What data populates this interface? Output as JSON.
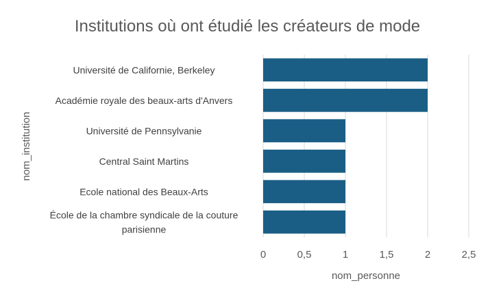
{
  "chart_data": {
    "type": "bar",
    "orientation": "horizontal",
    "title": "Institutions où ont étudié les créateurs de mode",
    "xlabel": "nom_personne",
    "ylabel": "nom_institution",
    "categories": [
      "Université de Californie, Berkeley",
      "Académie royale des beaux-arts d'Anvers",
      "Université de Pennsylvanie",
      "Central Saint Martins",
      "Ecole national des Beaux-Arts",
      "École de la chambre syndicale de la couture parisienne"
    ],
    "values": [
      2,
      2,
      1,
      1,
      1,
      1
    ],
    "xlim": [
      0,
      2.5
    ],
    "xticks": [
      "0",
      "0,5",
      "1",
      "1,5",
      "2",
      "2,5"
    ],
    "grid": true,
    "legend": "none",
    "bar_color": "#1a5e85"
  }
}
